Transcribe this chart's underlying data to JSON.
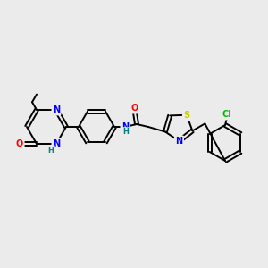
{
  "bg_color": "#ebebeb",
  "bond_color": "#000000",
  "atom_colors": {
    "N": "#0000ff",
    "O": "#ff0000",
    "S": "#cccc00",
    "Cl": "#00bb00",
    "C": "#000000",
    "H": "#008080"
  },
  "figsize": [
    3.0,
    3.0
  ],
  "dpi": 100
}
